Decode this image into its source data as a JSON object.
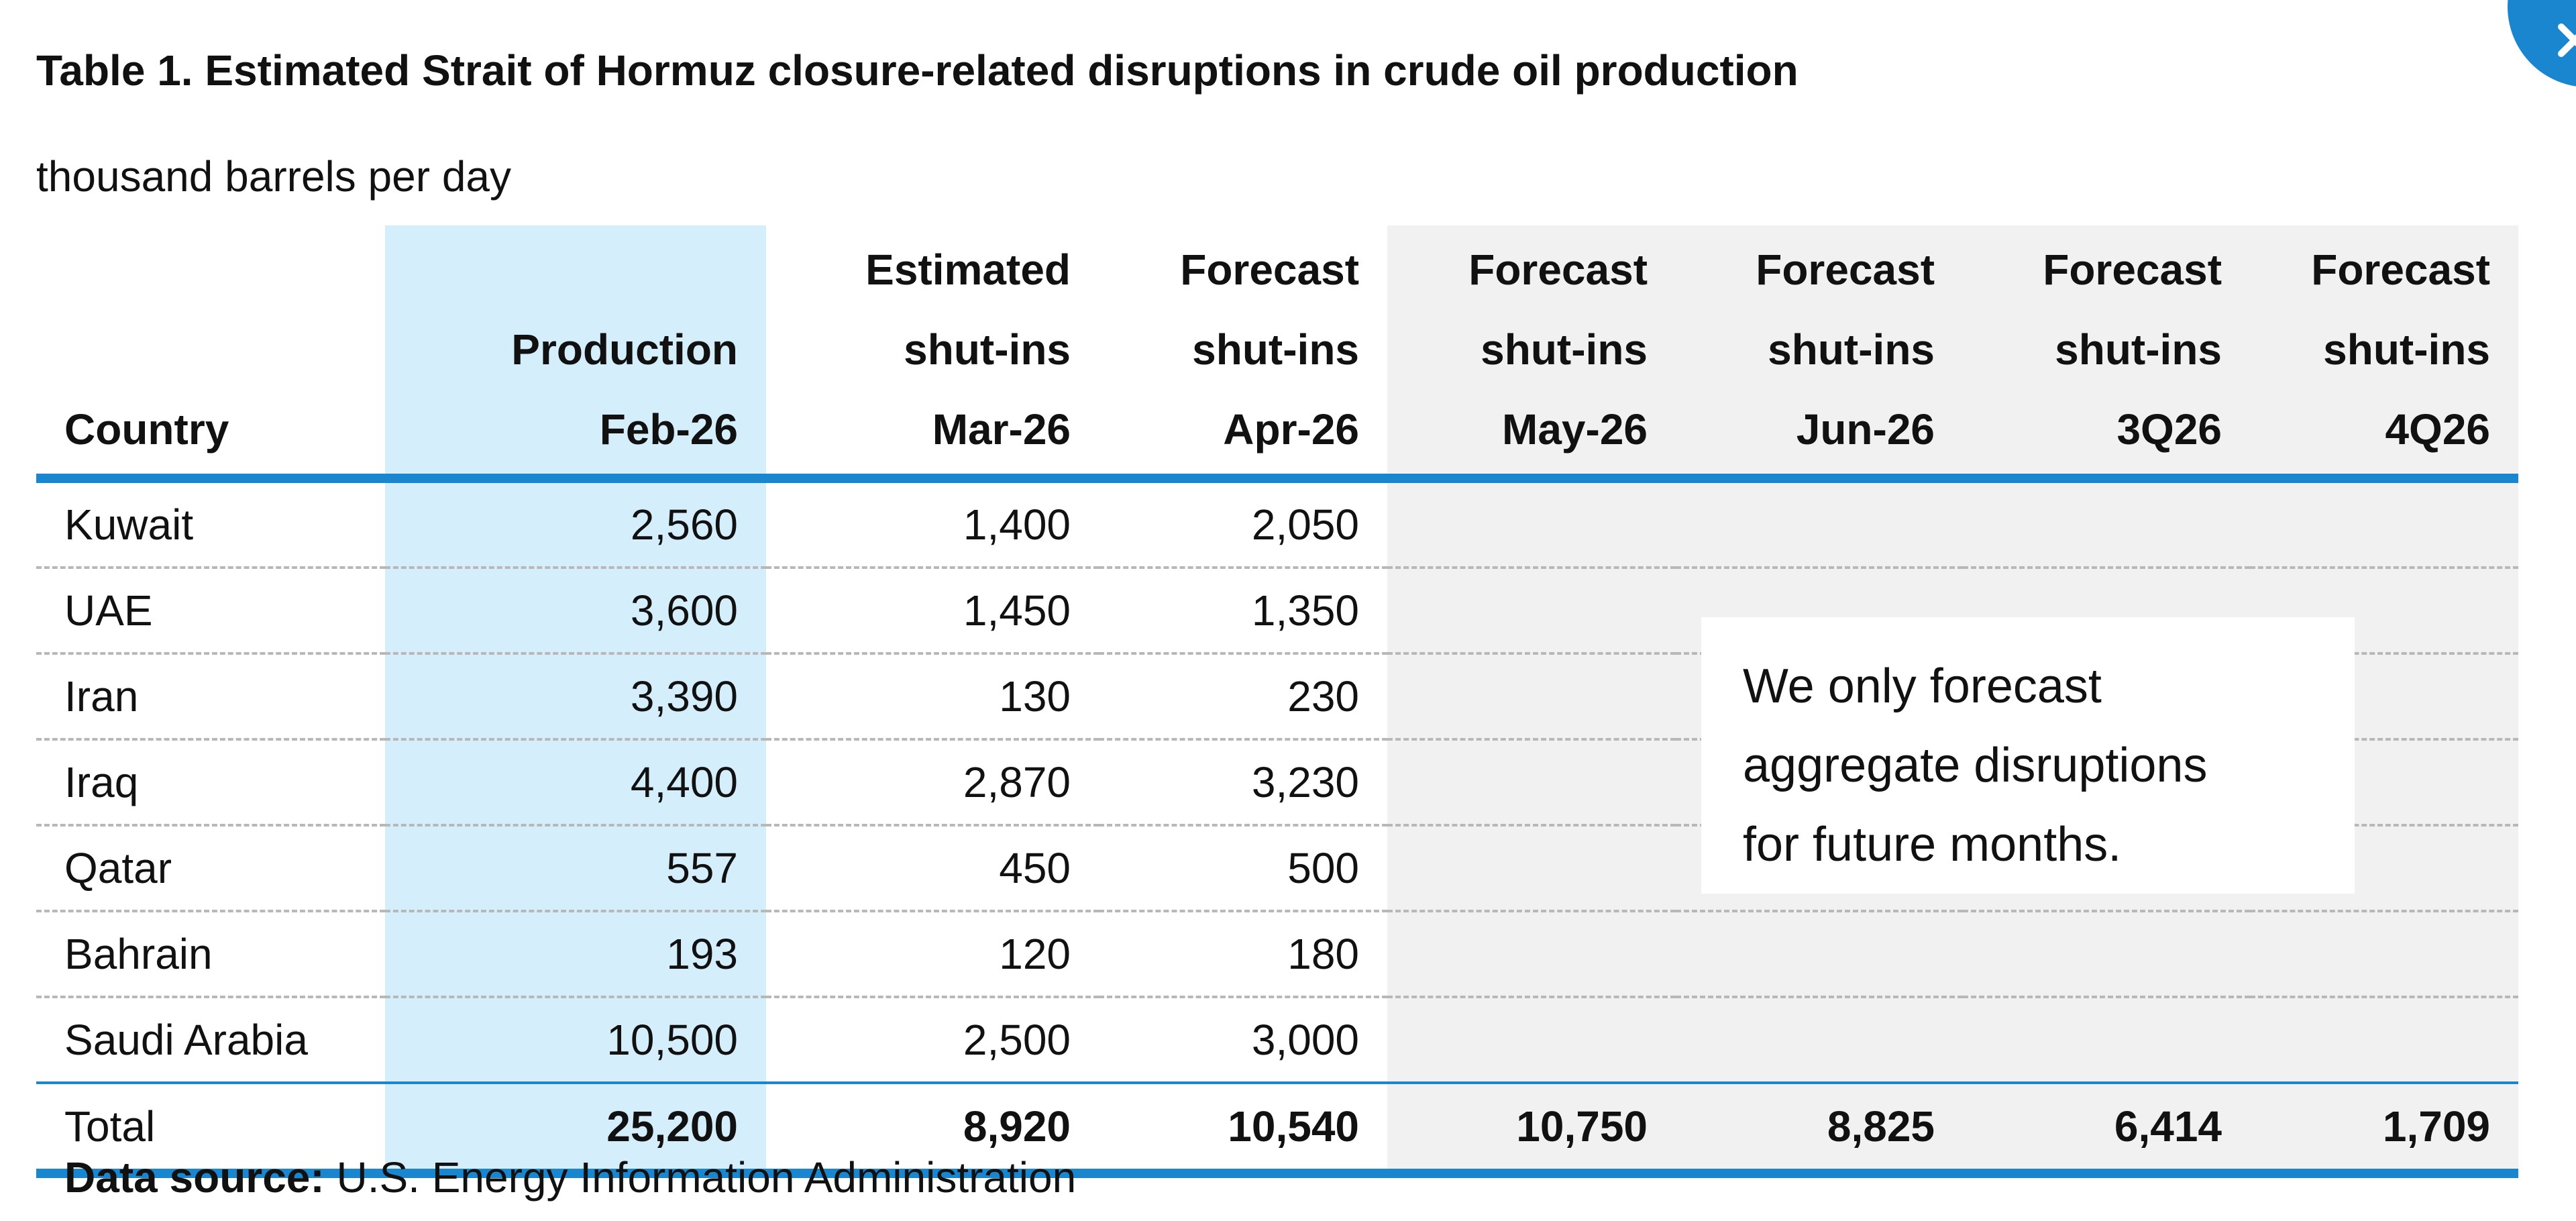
{
  "title": "Table 1. Estimated Strait of Hormuz closure-related disruptions in crude oil production",
  "units": "thousand barrels per day",
  "columns": [
    {
      "lines": [
        "Country"
      ]
    },
    {
      "lines": [
        "Production",
        "Feb-26"
      ]
    },
    {
      "lines": [
        "Estimated",
        "shut-ins",
        "Mar-26"
      ]
    },
    {
      "lines": [
        "Forecast",
        "shut-ins",
        "Apr-26"
      ]
    },
    {
      "lines": [
        "Forecast",
        "shut-ins",
        "May-26"
      ]
    },
    {
      "lines": [
        "Forecast",
        "shut-ins",
        "Jun-26"
      ]
    },
    {
      "lines": [
        "Forecast",
        "shut-ins",
        "3Q26"
      ]
    },
    {
      "lines": [
        "Forecast",
        "shut-ins",
        "4Q26"
      ]
    }
  ],
  "rows": [
    {
      "country": "Kuwait",
      "cells": [
        "2,560",
        "1,400",
        "2,050",
        "",
        "",
        "",
        ""
      ]
    },
    {
      "country": "UAE",
      "cells": [
        "3,600",
        "1,450",
        "1,350",
        "",
        "",
        "",
        ""
      ]
    },
    {
      "country": "Iran",
      "cells": [
        "3,390",
        "130",
        "230",
        "",
        "",
        "",
        ""
      ]
    },
    {
      "country": "Iraq",
      "cells": [
        "4,400",
        "2,870",
        "3,230",
        "",
        "",
        "",
        ""
      ]
    },
    {
      "country": "Qatar",
      "cells": [
        "557",
        "450",
        "500",
        "",
        "",
        "",
        ""
      ]
    },
    {
      "country": "Bahrain",
      "cells": [
        "193",
        "120",
        "180",
        "",
        "",
        "",
        ""
      ]
    },
    {
      "country": "Saudi Arabia",
      "cells": [
        "10,500",
        "2,500",
        "3,000",
        "",
        "",
        "",
        ""
      ]
    }
  ],
  "total": {
    "label": "Total",
    "cells": [
      "25,200",
      "8,920",
      "10,540",
      "10,750",
      "8,825",
      "6,414",
      "1,709"
    ]
  },
  "note": {
    "lines": [
      "We only forecast",
      "aggregate disruptions",
      "for future months."
    ]
  },
  "source": {
    "label": "Data source:",
    "text": " U.S. Energy Information Administration"
  },
  "colors": {
    "accent": "#1a86d0",
    "production_column": "#d4effb",
    "forecast_area": "#f1f1f1",
    "row_divider": "#b8b8b8"
  },
  "icons": {
    "corner": "circular-badge-icon"
  }
}
